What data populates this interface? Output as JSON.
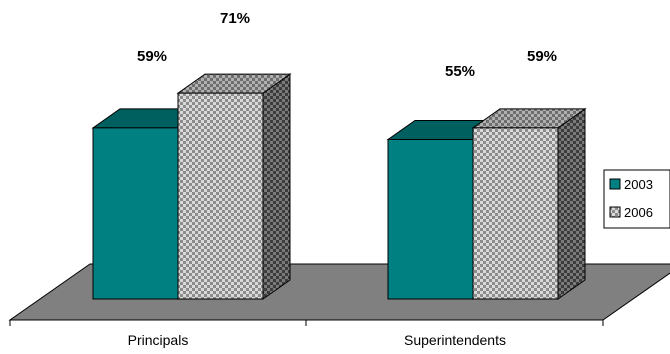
{
  "chart_data": {
    "type": "bar",
    "categories": [
      "Principals",
      "Superintendents"
    ],
    "series": [
      {
        "name": "2003",
        "values": [
          59,
          55
        ],
        "labels": [
          "59%",
          "55%"
        ],
        "color": "#008080",
        "pattern": "solid"
      },
      {
        "name": "2006",
        "values": [
          71,
          59
        ],
        "labels": [
          "71%",
          "59%"
        ],
        "color": "#c8c8c8",
        "pattern": "checker"
      }
    ],
    "legend": {
      "position": "right",
      "entries": [
        "2003",
        "2006"
      ]
    },
    "floor_color": "#808080",
    "three_d": true,
    "grid": false
  }
}
